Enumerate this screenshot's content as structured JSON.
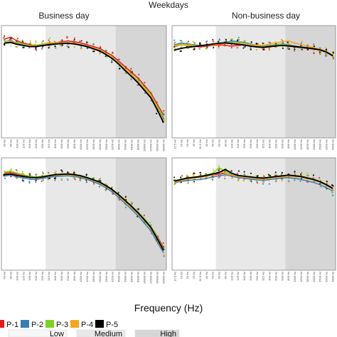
{
  "chart_data": {
    "type": "line",
    "title": "Weekdays",
    "xlabel": "Frequency (Hz)",
    "ylabel": "",
    "ylim": [
      -20,
      8
    ],
    "grid": false,
    "x": [
      "63",
      "80",
      "100",
      "125",
      "160",
      "200",
      "250",
      "315",
      "400",
      "500",
      "630",
      "800",
      "1000",
      "1250",
      "1600",
      "2000",
      "2500",
      "3150",
      "4000",
      "5000",
      "6300",
      "8000",
      "10000",
      "12500",
      "16000",
      "20000"
    ],
    "x_tick_labels_left": [
      "63 Hz",
      "80 Hz",
      "100 Hz",
      "125 Hz",
      "160 Hz",
      "200 Hz",
      "250 Hz",
      "315 Hz",
      "400 Hz",
      "500 Hz",
      "630 Hz",
      "800 Hz",
      "1000 Hz",
      "1250 Hz",
      "1600 Hz",
      "2000 Hz",
      "2500 Hz",
      "3150 Hz",
      "4000 Hz",
      "5000 Hz",
      "6300 Hz",
      "8000 Hz",
      "10000 Hz",
      "12500 Hz",
      "16000 Hz",
      "20000 Hz"
    ],
    "x_tick_labels_right": [
      "12.5 Hz",
      "16 Hz",
      "20 Hz",
      "25 Hz",
      "31.5 Hz",
      "40 Hz",
      "50 Hz",
      "63 Hz",
      "80 Hz",
      "100 Hz",
      "125 Hz",
      "160 Hz",
      "200 Hz",
      "250 Hz",
      "315 Hz",
      "400 Hz",
      "500 Hz",
      "630 Hz",
      "800 Hz",
      "1000 Hz",
      "1250 Hz",
      "1600 Hz",
      "2000 Hz",
      "2500 Hz",
      "3150 Hz",
      "4000 Hz"
    ],
    "bands": [
      {
        "label": "Low",
        "color": "#ffffff",
        "from": 0,
        "to": 7
      },
      {
        "label": "Medium",
        "color": "#e8e8e8",
        "from": 7,
        "to": 18
      },
      {
        "label": "High",
        "color": "#d6d6d6",
        "from": 18,
        "to": 25
      }
    ],
    "legend": [
      {
        "name": "P-1",
        "color": "#e41a1c"
      },
      {
        "name": "P-2",
        "color": "#377eb8"
      },
      {
        "name": "P-3",
        "color": "#7ed321"
      },
      {
        "name": "P-4",
        "color": "#f5a623"
      },
      {
        "name": "P-5",
        "color": "#000000"
      }
    ],
    "legend_placement": "bottom",
    "panels": [
      {
        "title": "Business day",
        "series": [
          {
            "name": "P-1",
            "values": [
              5.5,
              6,
              5,
              4.5,
              4,
              3.8,
              4,
              4.2,
              4.5,
              4.8,
              5,
              4.8,
              4.5,
              4,
              3.5,
              3,
              2,
              1,
              -0.5,
              -2,
              -3.5,
              -5,
              -7,
              -9,
              -12,
              -15
            ]
          },
          {
            "name": "P-2",
            "values": [
              4.8,
              5.2,
              4.4,
              4,
              3.6,
              3.4,
              3.7,
              3.9,
              4.1,
              4.3,
              4.4,
              4.2,
              3.9,
              3.4,
              2.9,
              2.3,
              1.3,
              0.3,
              -1.2,
              -2.8,
              -4.3,
              -6,
              -8,
              -10,
              -13,
              -16
            ]
          },
          {
            "name": "P-3",
            "values": [
              5,
              4.8,
              4.6,
              4.2,
              3.8,
              3.9,
              4.1,
              4.6,
              4.3,
              4.4,
              4.5,
              4.3,
              4,
              3.6,
              3.1,
              2.6,
              1.6,
              0.6,
              -0.9,
              -2.5,
              -4,
              -5.7,
              -7.5,
              -9.5,
              -12.5,
              -15.5
            ]
          },
          {
            "name": "P-4",
            "values": [
              4.6,
              5,
              4.2,
              3.9,
              3.8,
              3.6,
              4,
              4.4,
              4.6,
              4.5,
              4.6,
              4.4,
              4.1,
              3.7,
              3.2,
              2.5,
              1.5,
              0.5,
              -1,
              -2.6,
              -4.2,
              -5.9,
              -7.8,
              -9.8,
              -13,
              -16.5
            ]
          },
          {
            "name": "P-5",
            "values": [
              4.4,
              4.6,
              4.1,
              3.8,
              3.5,
              3.5,
              3.8,
              4,
              4.2,
              4.3,
              4.4,
              4.2,
              3.9,
              3.5,
              2.9,
              2.3,
              1.3,
              0.2,
              -1.3,
              -3,
              -4.6,
              -6.3,
              -8.3,
              -10.3,
              -13.5,
              -17
            ]
          }
        ]
      },
      {
        "title": "Non-business day",
        "series": [
          {
            "name": "P-1",
            "values": [
              3.5,
              4,
              3.8,
              3.6,
              3.4,
              3.6,
              3.8,
              4,
              3.8,
              3.6,
              3.8,
              4,
              3.6,
              3.4,
              3.2,
              3.4,
              3.6,
              3.8,
              3.6,
              3.4,
              3.2,
              3,
              2.8,
              2.6,
              2,
              1
            ]
          },
          {
            "name": "P-2",
            "values": [
              4,
              4.5,
              4.2,
              4,
              3.8,
              4,
              4.2,
              4.4,
              4.6,
              5,
              4.8,
              4.6,
              4.2,
              3.8,
              3.6,
              3.8,
              4,
              4.2,
              4,
              3.6,
              3.4,
              3.2,
              3,
              2.8,
              2.2,
              1.2
            ]
          },
          {
            "name": "P-3",
            "values": [
              3.8,
              4.2,
              4,
              3.9,
              3.7,
              3.9,
              4.1,
              4.3,
              4.5,
              4.7,
              4.6,
              4.4,
              4,
              3.7,
              3.5,
              3.7,
              3.9,
              4.1,
              3.9,
              3.5,
              3.3,
              3.1,
              2.9,
              2.7,
              2.1,
              1.1
            ]
          },
          {
            "name": "P-4",
            "values": [
              3.6,
              4,
              3.8,
              3.7,
              3.6,
              3.8,
              4,
              4.2,
              4.3,
              4.4,
              4.3,
              4.2,
              4,
              3.9,
              3.8,
              4.2,
              4.5,
              4.8,
              5,
              4.5,
              4,
              3.6,
              3.2,
              2.8,
              2.2,
              1.3
            ]
          },
          {
            "name": "P-5",
            "values": [
              2.6,
              3,
              3.3,
              3.5,
              3.7,
              3.9,
              4.2,
              4.4,
              4.5,
              4.3,
              4.1,
              3.9,
              3.6,
              3.4,
              3.3,
              3.5,
              3.7,
              3.8,
              3.7,
              3.5,
              3.3,
              3.1,
              2.9,
              2.6,
              2,
              1
            ]
          }
        ]
      },
      {
        "title": "",
        "series": [
          {
            "name": "P-1",
            "values": [
              5,
              5.2,
              4.8,
              4.4,
              4,
              3.8,
              4,
              4.3,
              4.5,
              4.6,
              4.7,
              4.5,
              4.2,
              3.7,
              3.1,
              2.5,
              1.5,
              0.4,
              -1,
              -2.5,
              -4,
              -5.5,
              -7.3,
              -9.3,
              -12,
              -15
            ]
          },
          {
            "name": "P-2",
            "values": [
              4.2,
              4.5,
              4,
              3.7,
              3.4,
              3.3,
              3.6,
              3.9,
              4.1,
              4.2,
              4.3,
              4.1,
              3.8,
              3.3,
              2.7,
              2,
              1,
              -0.1,
              -1.6,
              -3.2,
              -4.8,
              -6.5,
              -8.5,
              -10.5,
              -13.5,
              -16.5
            ]
          },
          {
            "name": "P-3",
            "values": [
              5.2,
              5.6,
              5,
              4.6,
              4.2,
              4,
              4.2,
              4.5,
              4.7,
              4.8,
              4.9,
              4.7,
              4.4,
              3.9,
              3.3,
              2.7,
              1.7,
              0.6,
              -0.8,
              -2.3,
              -3.8,
              -5.4,
              -7.2,
              -9.2,
              -12.2,
              -15.5
            ]
          },
          {
            "name": "P-4",
            "values": [
              4.8,
              5,
              4.5,
              4.1,
              3.8,
              3.7,
              3.9,
              4.2,
              4.4,
              4.5,
              4.6,
              4.4,
              4.1,
              3.6,
              3,
              2.4,
              1.4,
              0.3,
              -1.1,
              -2.7,
              -4.3,
              -6,
              -7.9,
              -9.9,
              -12.8,
              -16
            ]
          },
          {
            "name": "P-5",
            "values": [
              4.6,
              4.8,
              4.4,
              4.1,
              3.9,
              3.8,
              4,
              4.3,
              4.6,
              4.7,
              4.8,
              4.6,
              4.3,
              3.8,
              3.2,
              2.6,
              1.6,
              0.5,
              -0.9,
              -2.4,
              -4,
              -5.7,
              -7.6,
              -9.6,
              -12.6,
              -15.8
            ]
          }
        ]
      },
      {
        "title": "",
        "series": [
          {
            "name": "P-1",
            "values": [
              2.8,
              3.2,
              3.6,
              3.8,
              4,
              4.2,
              4.5,
              4.8,
              5,
              4.6,
              4.2,
              4,
              3.8,
              3.6,
              3.5,
              3.7,
              3.9,
              4.1,
              4.3,
              4.2,
              4,
              3.6,
              3.2,
              2.6,
              1.8,
              0.8
            ]
          },
          {
            "name": "P-2",
            "values": [
              2.4,
              2.8,
              3,
              3.2,
              3.3,
              3.6,
              4,
              4.3,
              4.6,
              4.2,
              3.8,
              3.6,
              3.4,
              3.2,
              3.1,
              3.3,
              3.5,
              3.7,
              3.8,
              3.6,
              3.3,
              2.9,
              2.5,
              1.9,
              1.1,
              0.2
            ]
          },
          {
            "name": "P-3",
            "values": [
              3,
              3.4,
              3.8,
              4,
              4.2,
              4.6,
              5,
              6.5,
              5.5,
              4.8,
              4.4,
              4.2,
              4,
              3.8,
              3.7,
              3.9,
              4.1,
              4.3,
              4.5,
              4.4,
              4.2,
              3.8,
              3.4,
              2.8,
              2,
              1
            ]
          },
          {
            "name": "P-4",
            "values": [
              2.6,
              3,
              3.4,
              3.6,
              3.8,
              4.1,
              4.5,
              5.5,
              5,
              4.5,
              4.1,
              3.9,
              3.7,
              3.5,
              3.4,
              3.6,
              3.8,
              4,
              4.2,
              4.1,
              3.9,
              3.5,
              3.1,
              2.5,
              1.7,
              0.7
            ]
          },
          {
            "name": "P-5",
            "values": [
              2.9,
              3.3,
              3.7,
              3.9,
              4.1,
              4.4,
              4.8,
              5.2,
              6,
              5,
              4.4,
              4.2,
              4,
              3.8,
              3.7,
              3.9,
              4.1,
              4.3,
              4.5,
              4.3,
              4.1,
              3.7,
              3.3,
              2.7,
              1.9,
              0.9
            ]
          }
        ]
      }
    ]
  }
}
